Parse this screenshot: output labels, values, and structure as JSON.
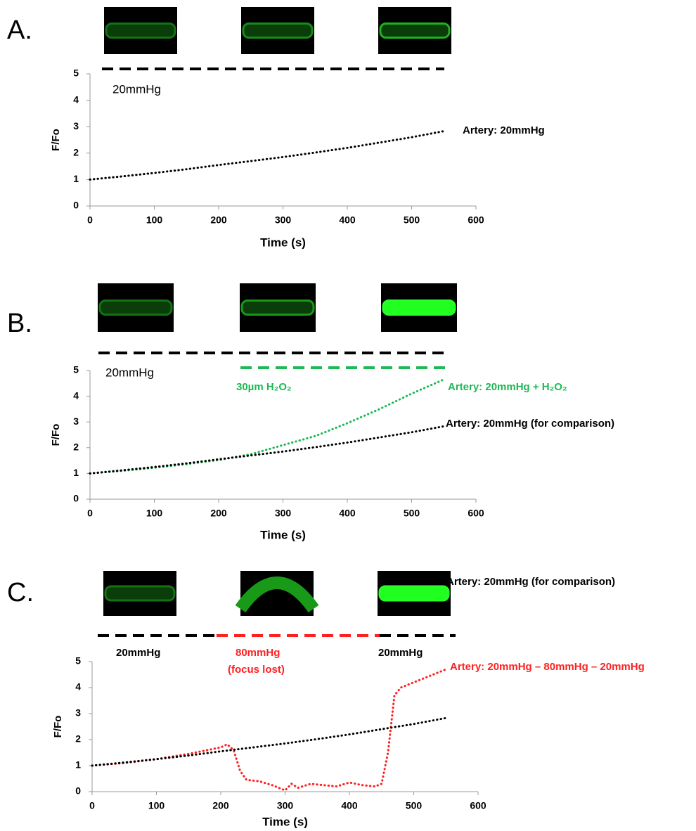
{
  "chart_data": [
    {
      "type": "line",
      "panel_label": "A.",
      "xlabel": "Time (s)",
      "ylabel": "F/Fo",
      "xlim": [
        0,
        600
      ],
      "xticks": [
        0,
        100,
        200,
        300,
        400,
        500,
        600
      ],
      "ylim": [
        0,
        5
      ],
      "yticks": [
        0,
        1,
        2,
        3,
        4,
        5
      ],
      "annotations": [
        {
          "text": "20mmHg",
          "color": "#000000"
        }
      ],
      "series": [
        {
          "name": "Artery: 20mmHg",
          "color": "#000000",
          "x": [
            0,
            50,
            100,
            150,
            200,
            250,
            300,
            350,
            400,
            450,
            500,
            550
          ],
          "values": [
            1,
            1.12,
            1.25,
            1.39,
            1.55,
            1.7,
            1.85,
            2.02,
            2.2,
            2.4,
            2.6,
            2.83
          ]
        }
      ]
    },
    {
      "type": "line",
      "panel_label": "B.",
      "xlabel": "Time (s)",
      "ylabel": "F/Fo",
      "xlim": [
        0,
        600
      ],
      "xticks": [
        0,
        100,
        200,
        300,
        400,
        500,
        600
      ],
      "ylim": [
        0,
        5
      ],
      "yticks": [
        0,
        1,
        2,
        3,
        4,
        5
      ],
      "annotations": [
        {
          "text": "20mmHg",
          "color": "#000000"
        },
        {
          "text": "30µm H₂O₂",
          "color": "#1db954"
        }
      ],
      "series": [
        {
          "name": "Artery: 20mmHg + H₂O₂",
          "color": "#1db954",
          "x": [
            0,
            50,
            100,
            150,
            200,
            250,
            300,
            350,
            400,
            450,
            500,
            550
          ],
          "values": [
            1,
            1.1,
            1.22,
            1.36,
            1.52,
            1.75,
            2.1,
            2.45,
            2.95,
            3.5,
            4.1,
            4.65
          ]
        },
        {
          "name": "Artery: 20mmHg (for comparison)",
          "color": "#000000",
          "x": [
            0,
            50,
            100,
            150,
            200,
            250,
            300,
            350,
            400,
            450,
            500,
            550
          ],
          "values": [
            1,
            1.12,
            1.25,
            1.39,
            1.55,
            1.7,
            1.85,
            2.02,
            2.2,
            2.4,
            2.6,
            2.83
          ]
        }
      ]
    },
    {
      "type": "line",
      "panel_label": "C.",
      "xlabel": "Time (s)",
      "ylabel": "F/Fo",
      "xlim": [
        0,
        600
      ],
      "xticks": [
        0,
        100,
        200,
        300,
        400,
        500,
        600
      ],
      "ylim": [
        0,
        5
      ],
      "yticks": [
        0,
        1,
        2,
        3,
        4,
        5
      ],
      "annotations": [
        {
          "text": "20mmHg",
          "color": "#000000"
        },
        {
          "text": "80mmHg",
          "color": "#ff2020"
        },
        {
          "text": "(focus lost)",
          "color": "#ff2020"
        },
        {
          "text": "20mmHg",
          "color": "#000000"
        }
      ],
      "series": [
        {
          "name": "Artery: 20mmHg – 80mmHg – 20mmHg",
          "color": "#ff2020",
          "x": [
            0,
            50,
            100,
            150,
            200,
            210,
            220,
            230,
            240,
            260,
            280,
            300,
            310,
            320,
            340,
            360,
            380,
            400,
            420,
            440,
            450,
            460,
            465,
            470,
            480,
            500,
            550
          ],
          "values": [
            1,
            1.1,
            1.25,
            1.45,
            1.7,
            1.82,
            1.6,
            0.8,
            0.45,
            0.4,
            0.25,
            0.05,
            0.3,
            0.15,
            0.3,
            0.25,
            0.2,
            0.35,
            0.25,
            0.2,
            0.3,
            1.5,
            2.6,
            3.7,
            4.0,
            4.2,
            4.7
          ]
        },
        {
          "name": "Artery: 20mmHg (for comparison)",
          "color": "#000000",
          "x": [
            0,
            50,
            100,
            150,
            200,
            250,
            300,
            350,
            400,
            450,
            500,
            550
          ],
          "values": [
            1,
            1.12,
            1.25,
            1.39,
            1.55,
            1.7,
            1.85,
            2.02,
            2.2,
            2.4,
            2.6,
            2.83
          ]
        }
      ]
    }
  ]
}
